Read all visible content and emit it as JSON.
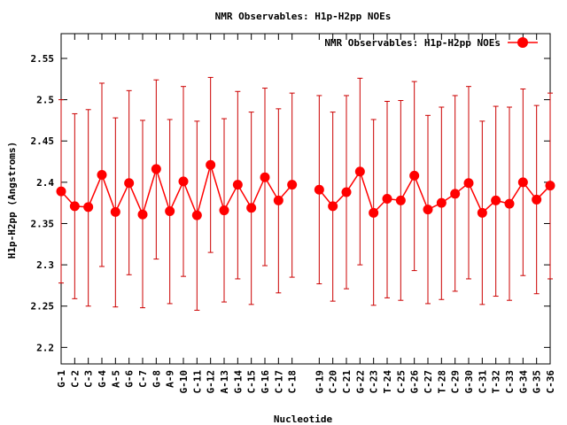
{
  "chart_data": {
    "type": "line",
    "title": "NMR Observables: H1p-H2pp NOEs",
    "xlabel": "Nucleotide",
    "ylabel": "H1p-H2pp (Angstroms)",
    "ylim": [
      2.18,
      2.58
    ],
    "yticks": [
      "2.2",
      "2.25",
      "2.3",
      "2.35",
      "2.4",
      "2.45",
      "2.5",
      "2.55"
    ],
    "legend": {
      "position": "top-right",
      "label": "NMR Observables: H1p-H2pp NOEs"
    },
    "colors": {
      "series": "#ff0000",
      "error": "#cc0000",
      "frame": "#000000"
    },
    "segments": [
      {
        "categories": [
          "G-1",
          "C-2",
          "C-3",
          "G-4",
          "A-5",
          "G-6",
          "C-7",
          "G-8",
          "A-9",
          "G-10",
          "C-11",
          "G-12",
          "A-13",
          "G-14",
          "C-15",
          "G-16",
          "C-17",
          "C-18"
        ],
        "values": [
          2.389,
          2.371,
          2.37,
          2.409,
          2.364,
          2.399,
          2.361,
          2.416,
          2.365,
          2.401,
          2.36,
          2.421,
          2.366,
          2.397,
          2.369,
          2.406,
          2.378,
          2.397
        ],
        "err_low": [
          2.278,
          2.259,
          2.25,
          2.298,
          2.249,
          2.288,
          2.248,
          2.307,
          2.253,
          2.286,
          2.245,
          2.315,
          2.255,
          2.283,
          2.252,
          2.299,
          2.266,
          2.285
        ],
        "err_high": [
          2.5,
          2.483,
          2.488,
          2.52,
          2.478,
          2.511,
          2.475,
          2.524,
          2.476,
          2.516,
          2.474,
          2.527,
          2.477,
          2.51,
          2.485,
          2.514,
          2.489,
          2.508
        ]
      },
      {
        "categories": [
          "G-19",
          "C-20",
          "C-21",
          "G-22",
          "C-23",
          "T-24",
          "C-25",
          "G-26",
          "C-27",
          "T-28",
          "C-29",
          "G-30",
          "C-31",
          "T-32",
          "C-33",
          "G-34",
          "G-35",
          "C-36"
        ],
        "values": [
          2.391,
          2.371,
          2.388,
          2.413,
          2.363,
          2.38,
          2.378,
          2.408,
          2.367,
          2.375,
          2.386,
          2.399,
          2.363,
          2.378,
          2.374,
          2.4,
          2.379,
          2.396
        ],
        "err_low": [
          2.277,
          2.256,
          2.271,
          2.3,
          2.251,
          2.26,
          2.257,
          2.293,
          2.253,
          2.258,
          2.268,
          2.283,
          2.252,
          2.262,
          2.257,
          2.287,
          2.265,
          2.283
        ],
        "err_high": [
          2.505,
          2.485,
          2.505,
          2.526,
          2.476,
          2.498,
          2.499,
          2.522,
          2.481,
          2.491,
          2.505,
          2.516,
          2.474,
          2.492,
          2.491,
          2.513,
          2.493,
          2.508
        ]
      }
    ]
  }
}
